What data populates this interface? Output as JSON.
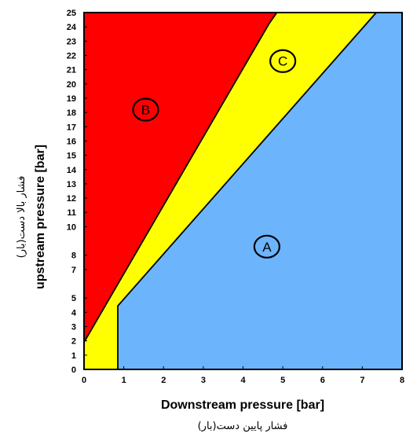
{
  "chart_data": {
    "type": "area",
    "xlabel": "Downstream pressure [bar]",
    "xlabel_secondary": "فشار پایین دست(بار)",
    "ylabel": "upstream pressure [bar]",
    "ylabel_secondary": "فشار بالا دست(بار)",
    "xlim": [
      0,
      8
    ],
    "ylim": [
      0,
      25
    ],
    "x_ticks": [
      "0",
      "1",
      "2",
      "3",
      "4",
      "5",
      "6",
      "7",
      "8"
    ],
    "y_ticks": [
      "0",
      "1",
      "2",
      "3",
      "4",
      "5",
      "7",
      "8",
      "10",
      "11",
      "12",
      "13",
      "14",
      "15",
      "16",
      "17",
      "18",
      "19",
      "20",
      "21",
      "22",
      "23",
      "24",
      "25"
    ],
    "grid": false,
    "regions": [
      {
        "name": "A",
        "color": "#6cb4fb",
        "polygon": [
          [
            0.85,
            0
          ],
          [
            8,
            0
          ],
          [
            8,
            25
          ],
          [
            7.35,
            25
          ],
          [
            0.85,
            4.45
          ]
        ]
      },
      {
        "name": "C",
        "color": "#ffff00",
        "polygon": [
          [
            0,
            0
          ],
          [
            0.85,
            0
          ],
          [
            0.85,
            4.45
          ],
          [
            7.35,
            25
          ],
          [
            4.85,
            25
          ],
          [
            4.65,
            24.2
          ],
          [
            0,
            1.9
          ]
        ]
      },
      {
        "name": "B",
        "color": "#ff0000",
        "polygon": [
          [
            0,
            1.9
          ],
          [
            4.65,
            24.2
          ],
          [
            4.85,
            25
          ],
          [
            0,
            25
          ]
        ]
      }
    ],
    "region_labels": [
      {
        "text": "A",
        "x": 4.6,
        "y": 8.6
      },
      {
        "text": "B",
        "x": 1.55,
        "y": 18.2
      },
      {
        "text": "C",
        "x": 5.0,
        "y": 21.6
      }
    ],
    "boundary_lines": [
      [
        [
          0.85,
          0
        ],
        [
          0.85,
          4.45
        ],
        [
          7.35,
          25
        ]
      ],
      [
        [
          0,
          1.9
        ],
        [
          4.65,
          24.2
        ],
        [
          4.85,
          25
        ]
      ]
    ]
  }
}
